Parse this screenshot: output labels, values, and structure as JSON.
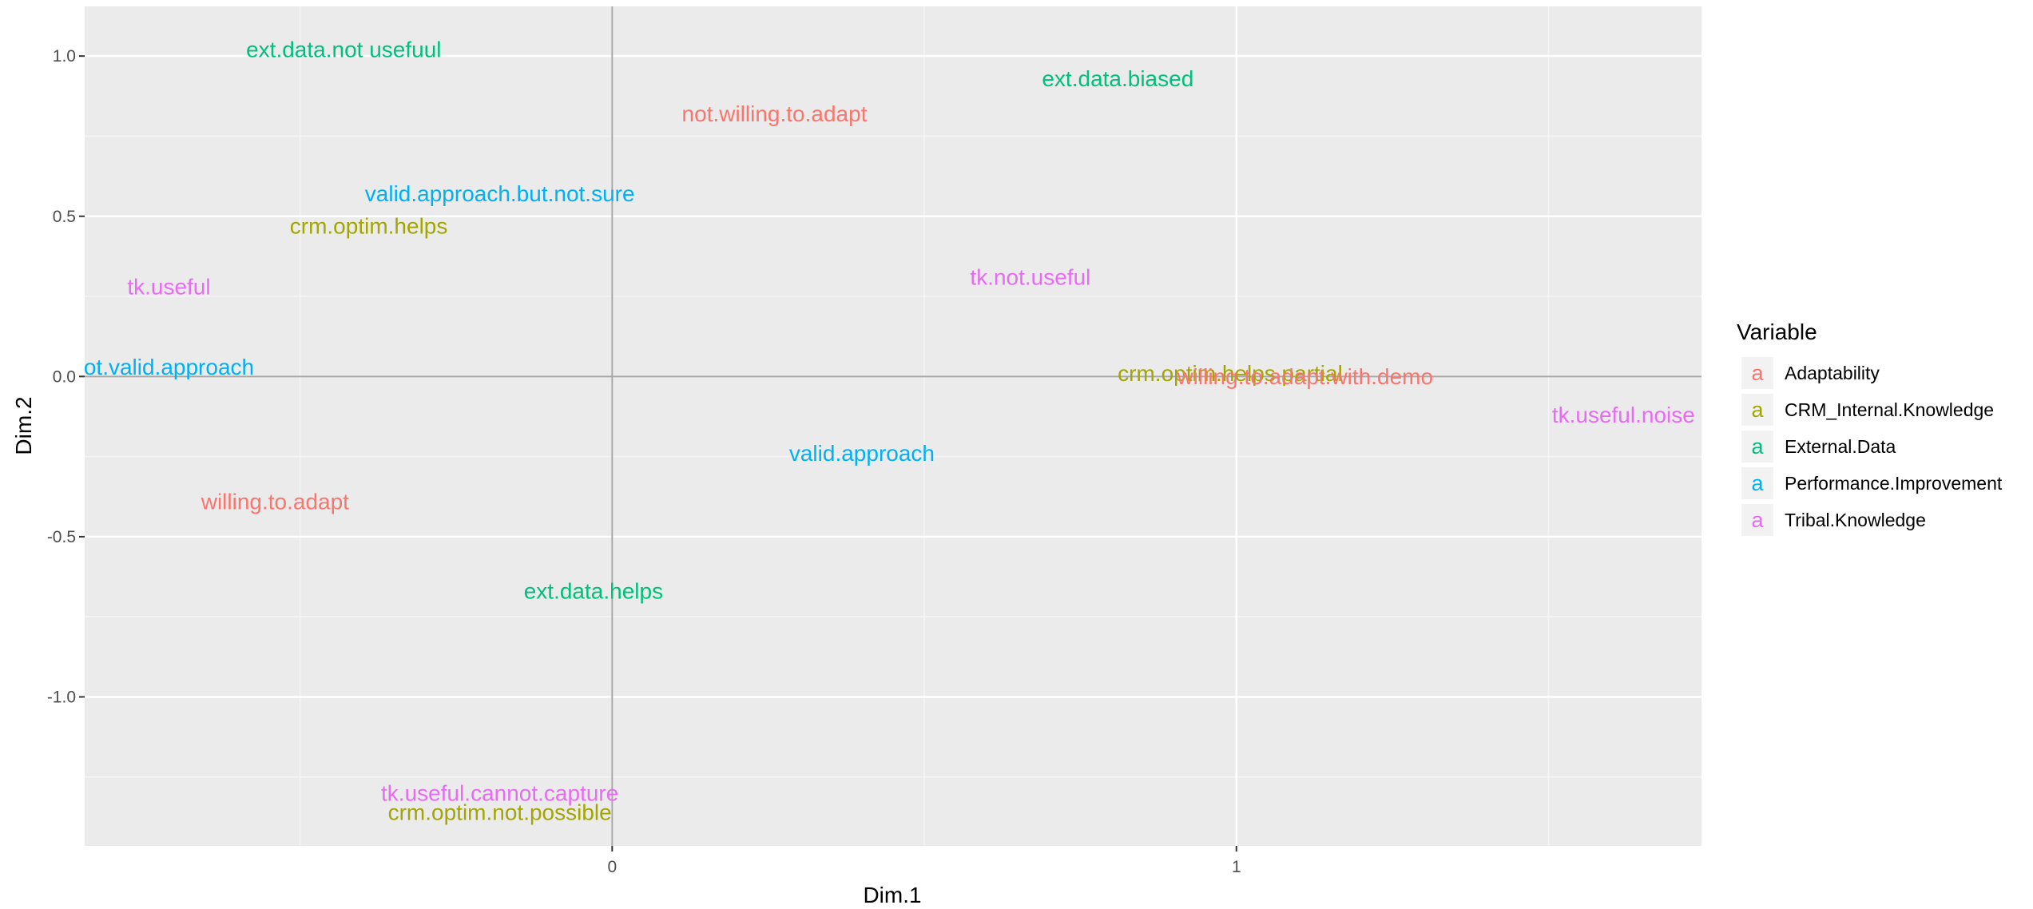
{
  "chart_data": {
    "type": "scatter",
    "title": "",
    "xlabel": "Dim.1",
    "ylabel": "Dim.2",
    "xlim": [
      -0.845,
      1.745
    ],
    "ylim": [
      -1.465,
      1.155
    ],
    "x_ticks": [
      {
        "value": 0,
        "label": "0"
      },
      {
        "value": 1,
        "label": "1"
      }
    ],
    "y_ticks": [
      {
        "value": 1.0,
        "label": "1.0"
      },
      {
        "value": 0.5,
        "label": "0.5"
      },
      {
        "value": 0.0,
        "label": "0.0"
      },
      {
        "value": -0.5,
        "label": "-0.5"
      },
      {
        "value": -1.0,
        "label": "-1.0"
      }
    ],
    "x_minor_gridlines": [
      -0.5,
      0.5,
      1.5
    ],
    "y_minor_gridlines": [
      0.75,
      0.25,
      -0.25,
      -0.75,
      -1.25
    ],
    "reference_lines": {
      "x": 0,
      "y": 0
    },
    "grid": true,
    "legend_position": "right",
    "legend": {
      "title": "Variable",
      "key_glyph": "a",
      "entries": [
        {
          "name": "Adaptability",
          "color": "#F8766D"
        },
        {
          "name": "CRM_Internal.Knowledge",
          "color": "#A3A500"
        },
        {
          "name": "External.Data",
          "color": "#00BF7D"
        },
        {
          "name": "Performance.Improvement",
          "color": "#00B0F6"
        },
        {
          "name": "Tribal.Knowledge",
          "color": "#E76BF3"
        }
      ]
    },
    "points": [
      {
        "label": "ext.data.not usefuul",
        "x": -0.43,
        "y": 1.02,
        "series": "External.Data"
      },
      {
        "label": "ext.data.biased",
        "x": 0.81,
        "y": 0.93,
        "series": "External.Data"
      },
      {
        "label": "not.willing.to.adapt",
        "x": 0.26,
        "y": 0.82,
        "series": "Adaptability"
      },
      {
        "label": "valid.approach.but.not.sure",
        "x": -0.18,
        "y": 0.57,
        "series": "Performance.Improvement"
      },
      {
        "label": "crm.optim.helps",
        "x": -0.39,
        "y": 0.47,
        "series": "CRM_Internal.Knowledge"
      },
      {
        "label": "tk.useful",
        "x": -0.71,
        "y": 0.28,
        "series": "Tribal.Knowledge"
      },
      {
        "label": "tk.not.useful",
        "x": 0.67,
        "y": 0.31,
        "series": "Tribal.Knowledge"
      },
      {
        "label": "not.valid.approach",
        "x": -0.72,
        "y": 0.03,
        "series": "Performance.Improvement"
      },
      {
        "label": "crm.optim.helps.partial",
        "x": 0.99,
        "y": 0.01,
        "series": "CRM_Internal.Knowledge"
      },
      {
        "label": "willing.to.adapt.with.demo",
        "x": 1.11,
        "y": -0.0,
        "series": "Adaptability"
      },
      {
        "label": "tk.useful.noise",
        "x": 1.62,
        "y": -0.12,
        "series": "Tribal.Knowledge"
      },
      {
        "label": "valid.approach",
        "x": 0.4,
        "y": -0.24,
        "series": "Performance.Improvement"
      },
      {
        "label": "willing.to.adapt",
        "x": -0.54,
        "y": -0.39,
        "series": "Adaptability"
      },
      {
        "label": "ext.data.helps",
        "x": -0.03,
        "y": -0.67,
        "series": "External.Data"
      },
      {
        "label": "tk.useful.cannot.capture",
        "x": -0.18,
        "y": -1.3,
        "series": "Tribal.Knowledge"
      },
      {
        "label": "crm.optim.not.possible",
        "x": -0.18,
        "y": -1.36,
        "series": "CRM_Internal.Knowledge"
      }
    ]
  }
}
